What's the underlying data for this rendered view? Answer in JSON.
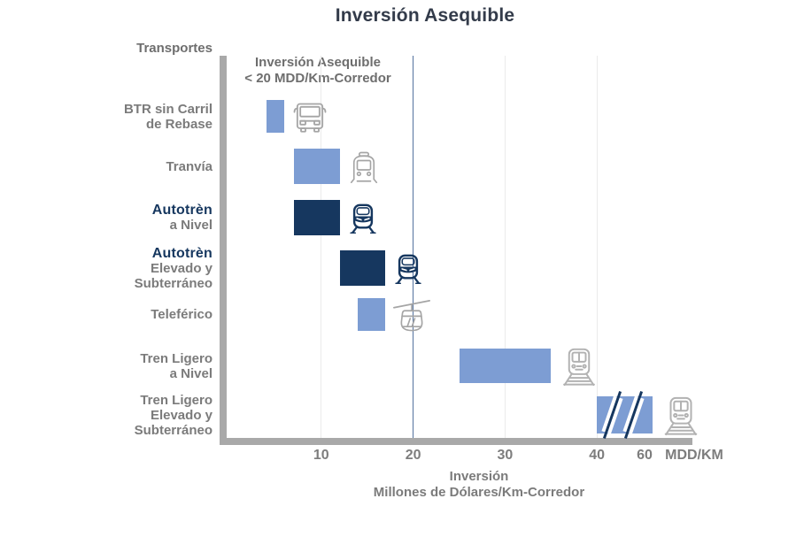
{
  "colors": {
    "light_bar": "#7d9dd3",
    "navy_bar": "#16375f",
    "title_text": "#333b4a",
    "gray_text": "#7b7b7b",
    "annotation_text": "#6e6e6e",
    "axis": "#a9a9a9",
    "grid": "#ebebeb",
    "threshold_line": "#53719f",
    "icon_gray": "#a5a5a5",
    "icon_gray_light": "#b2b2b2",
    "logo_navy": "#16375f"
  },
  "chart_data": {
    "type": "bar",
    "orientation": "horizontal",
    "title": "Inversión Asequible",
    "column_header": "Transportes",
    "annotation_line1": "Inversión Asequible",
    "annotation_line2": "< 20 MDD/Km-Corredor",
    "threshold_value": 20,
    "x_ticks": [
      10,
      20,
      30,
      40,
      60
    ],
    "gridline_ticks": [
      10,
      30,
      40
    ],
    "x_unit": "MDD/KM",
    "xlabel_line1": "Inversión",
    "xlabel_line2": "Millones de Dólares/Km-Corredor",
    "axis_break_between": [
      40,
      60
    ],
    "xlim_visible": [
      0,
      60
    ],
    "bars": [
      {
        "category": "BTR sin Carril de Rebase",
        "label_lines": [
          "BTR sin Carril",
          "de Rebase"
        ],
        "start": 4,
        "end": 6,
        "style": "light",
        "icon": "bus"
      },
      {
        "category": "Tranvía",
        "label_lines": [
          "Tranvía"
        ],
        "start": 7,
        "end": 12,
        "style": "light",
        "icon": "tram"
      },
      {
        "category": "Autotrèn a Nivel",
        "label_lines": [
          "Autotrèn",
          "a Nivel"
        ],
        "logo_line": 0,
        "start": 7,
        "end": 12,
        "style": "navy",
        "icon": "autotren"
      },
      {
        "category": "Autotrèn Elevado y Subterráneo",
        "label_lines": [
          "Autotrèn",
          "Elevado y",
          "Subterráneo"
        ],
        "logo_line": 0,
        "start": 12,
        "end": 17,
        "style": "navy",
        "icon": "autotren"
      },
      {
        "category": "Teleférico",
        "label_lines": [
          "Teleférico"
        ],
        "start": 14,
        "end": 17,
        "style": "light",
        "icon": "gondola"
      },
      {
        "category": "Tren Ligero a Nivel",
        "label_lines": [
          "Tren Ligero",
          "a Nivel"
        ],
        "start": 25,
        "end": 35,
        "style": "light",
        "icon": "lightrail"
      },
      {
        "category": "Tren Ligero Elevado y Subterráneo",
        "label_lines": [
          "Tren Ligero",
          "Elevado y",
          "Subterráneo"
        ],
        "start": 40,
        "end": 60,
        "style": "light",
        "icon": "lightrail",
        "axis_break": true
      }
    ]
  }
}
